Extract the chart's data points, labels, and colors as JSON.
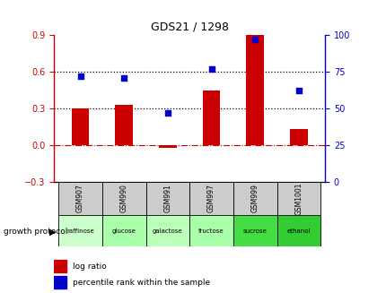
{
  "title": "GDS21 / 1298",
  "samples": [
    "GSM907",
    "GSM990",
    "GSM991",
    "GSM997",
    "GSM999",
    "GSM1001"
  ],
  "protocols": [
    "raffinose",
    "glucose",
    "galactose",
    "fructose",
    "sucrose",
    "ethanol"
  ],
  "log_ratio": [
    0.3,
    0.33,
    -0.02,
    0.45,
    0.9,
    0.13
  ],
  "percentile_rank": [
    72,
    71,
    47,
    77,
    97,
    62
  ],
  "bar_color": "#cc0000",
  "dot_color": "#0000cc",
  "ylim_left": [
    -0.3,
    0.9
  ],
  "ylim_right": [
    0,
    100
  ],
  "yticks_left": [
    -0.3,
    0.0,
    0.3,
    0.6,
    0.9
  ],
  "yticks_right": [
    0,
    25,
    50,
    75,
    100
  ],
  "hlines": [
    0.3,
    0.6
  ],
  "zero_line_y": 0.0,
  "protocol_colors": [
    "#ccffcc",
    "#aaffaa",
    "#bbffbb",
    "#aaffaa",
    "#44dd44",
    "#33cc33"
  ],
  "sample_bg": "#cccccc",
  "growth_protocol_text": "growth protocol"
}
